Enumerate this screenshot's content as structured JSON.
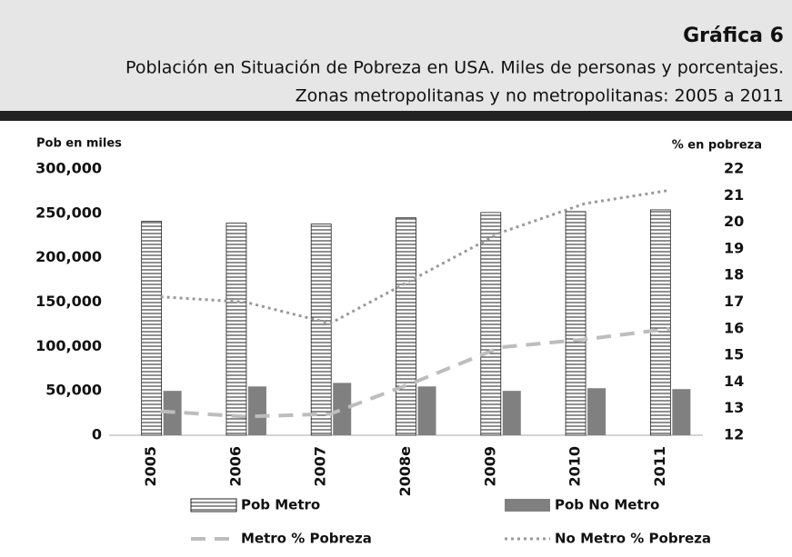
{
  "chart_data": {
    "type": "bar",
    "title": "Gráfica 6",
    "subtitle": [
      "Población en Situación de Pobreza en USA. Miles de personas y porcentajes.",
      "Zonas metropolitanas y no metropolitanas: 2005 a 2011"
    ],
    "ylabel": "Pob en miles",
    "y2label": "% en pobreza",
    "categories": [
      "2005",
      "2006",
      "2007",
      "2008e",
      "2009",
      "2010",
      "2011"
    ],
    "series": [
      {
        "name": "Pob Metro",
        "type": "bar",
        "color": "#ffffff",
        "hatch": "horizontal",
        "values": [
          241000,
          239000,
          238000,
          245000,
          251000,
          252000,
          254000
        ]
      },
      {
        "name": "Pob No Metro",
        "type": "bar",
        "color": "#808080",
        "values": [
          50000,
          55000,
          59000,
          55000,
          50000,
          53000,
          52000
        ]
      },
      {
        "name": "Metro % Pobreza",
        "type": "line",
        "axis": "y2",
        "color": "#bdbdbd",
        "linestyle": "dashed",
        "values": [
          12.9,
          12.7,
          12.8,
          14.0,
          15.3,
          15.6,
          16.0
        ]
      },
      {
        "name": "No Metro % Pobreza",
        "type": "line",
        "axis": "y2",
        "color": "#9a9a9a",
        "linestyle": "dotted",
        "values": [
          17.2,
          17.0,
          16.2,
          17.9,
          19.6,
          20.7,
          21.2
        ]
      }
    ],
    "ylim": [
      0,
      300000
    ],
    "yticks": [
      0,
      {
        "value": 50000,
        "label": "50,000"
      },
      {
        "value": 100000,
        "label": "100,000"
      },
      {
        "value": 150000,
        "label": "150,000"
      },
      {
        "value": 200000,
        "label": "200,000"
      },
      {
        "value": 250000,
        "label": "250,000"
      },
      {
        "value": 300000,
        "label": "300,000"
      }
    ],
    "y2lim": [
      12,
      22
    ],
    "y2ticks": [
      12,
      13,
      14,
      15,
      16,
      17,
      18,
      19,
      20,
      21,
      22
    ],
    "legend": "bottom"
  }
}
